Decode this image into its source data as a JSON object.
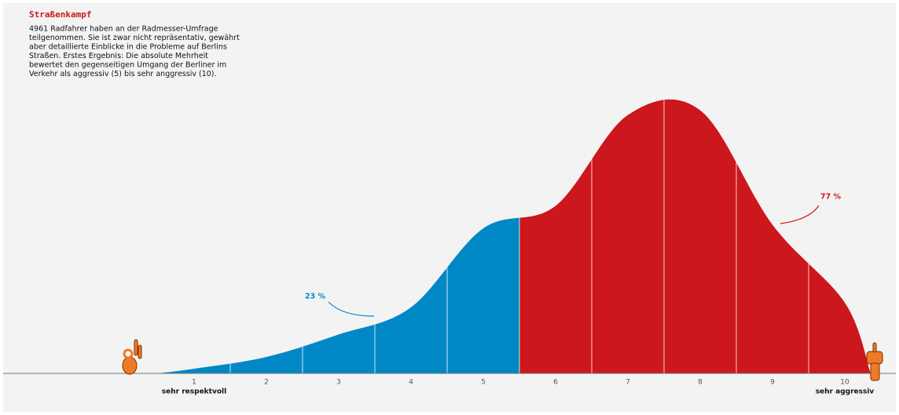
{
  "chart_data": {
    "type": "area",
    "title": "Straßenkampf",
    "description": [
      "4961 Radfahrer haben an der Radmesser-Umfrage",
      "teilgenommen. Sie ist zwar nicht repräsentativ, gewährt",
      "aber detaillierte Einblicke in die Probleme auf Berlins",
      "Straßen. Erstes Ergebnis: Die absolute Mehrheit",
      "bewertet den gegenseitigen Umgang der Berliner im",
      "Verkehr als aggressiv (5) bis sehr anggressiv (10)."
    ],
    "categories": [
      "1",
      "2",
      "3",
      "4",
      "5",
      "6",
      "7",
      "8",
      "9",
      "10"
    ],
    "end_labels": [
      "sehr respektvoll",
      "sehr aggressiv"
    ],
    "series": [
      {
        "label": "23 %",
        "color": "#0088c6",
        "values": [
          0.4,
          1.4,
          3.3,
          5.6,
          12.3,
          null,
          null,
          null,
          null,
          null
        ]
      },
      {
        "label": "77 %",
        "color": "#cc171c",
        "values": [
          null,
          null,
          null,
          null,
          null,
          14.2,
          21.9,
          22.3,
          12.6,
          6.0
        ]
      }
    ],
    "ylim": [
      0,
      25
    ]
  }
}
